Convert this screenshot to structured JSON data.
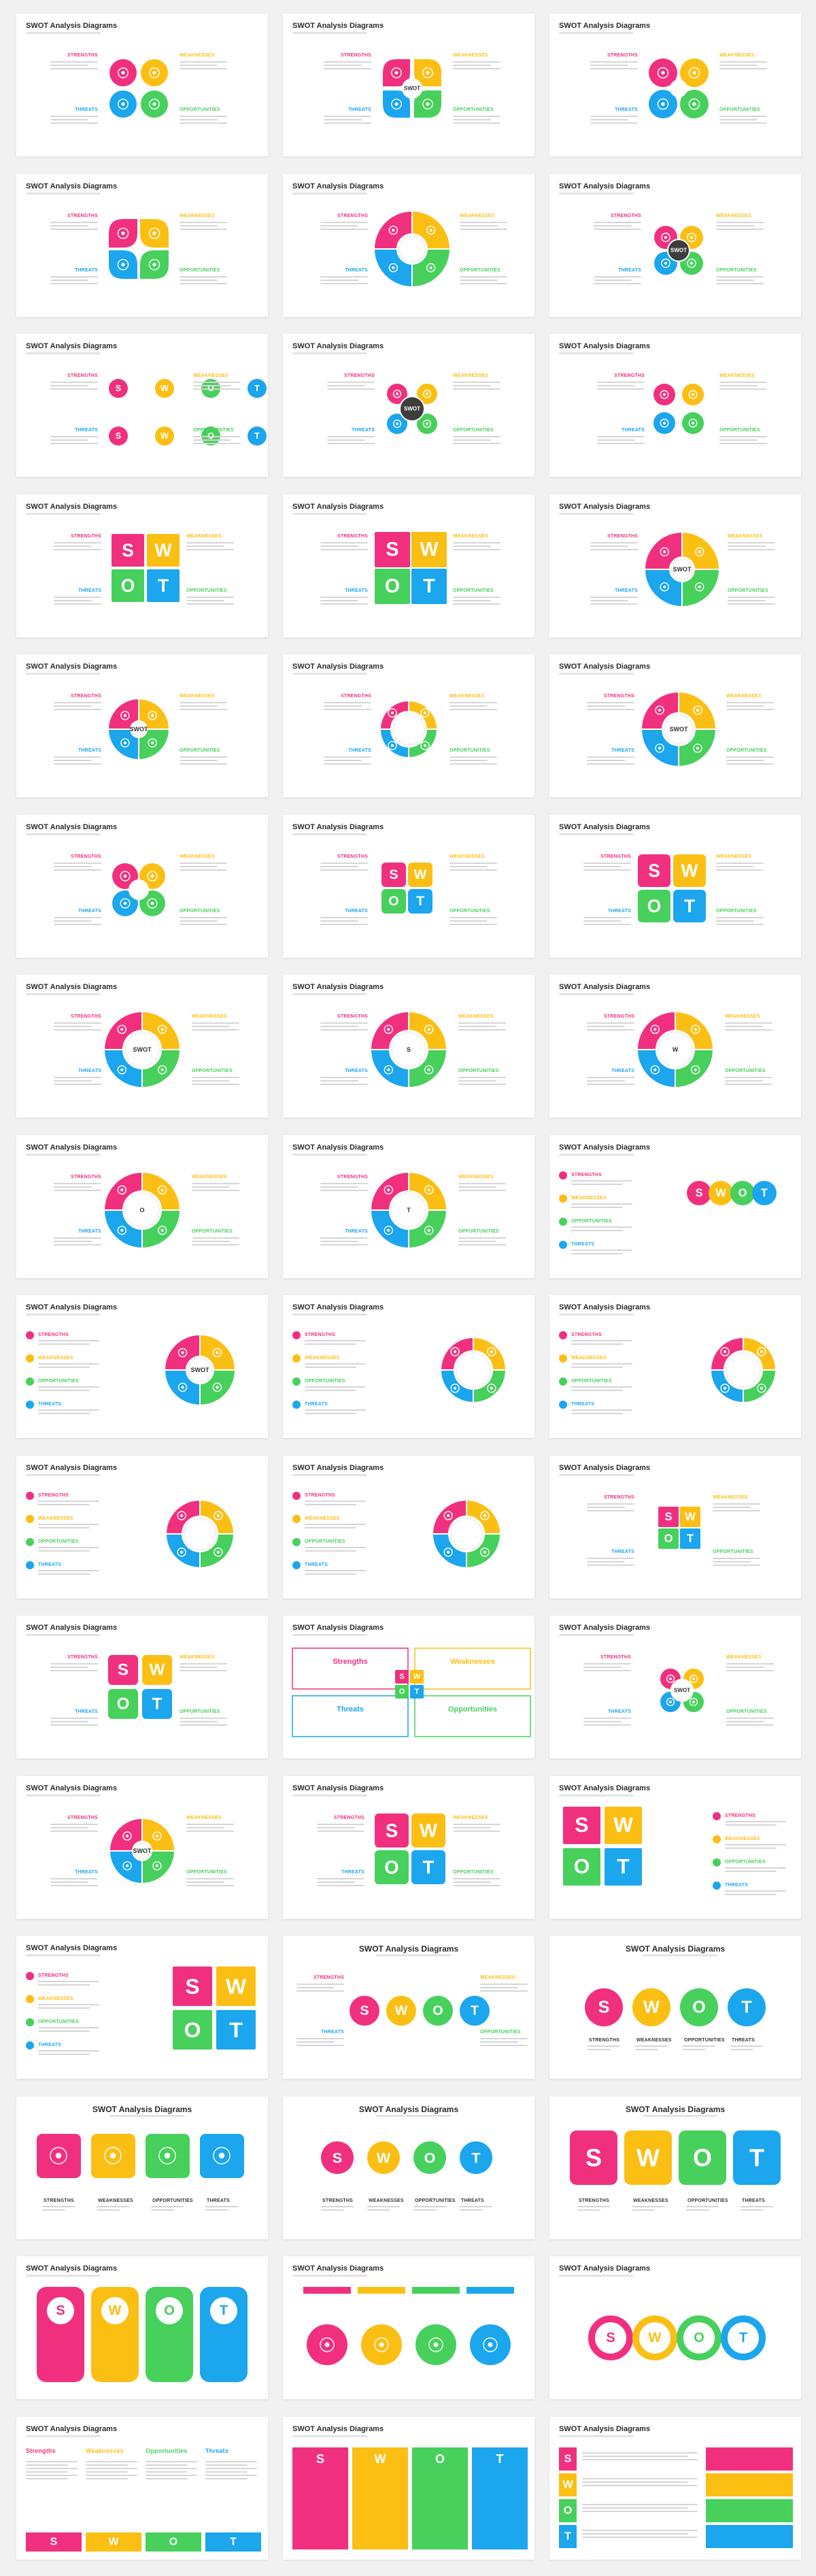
{
  "slide_title": "SWOT Analysis Diagrams",
  "labels": {
    "strengths": "STRENGTHS",
    "weaknesses": "WEAKNESSES",
    "opportunities": "OPPORTUNITIES",
    "threats": "THREATS",
    "center": "SWOT"
  },
  "cap_labels": {
    "strengths": "Strengths",
    "weaknesses": "Weaknesses",
    "opportunities": "Opportunities",
    "threats": "Threats"
  },
  "letters": [
    "S",
    "W",
    "O",
    "T"
  ],
  "colors": {
    "strengths": "#f0307f",
    "weaknesses": "#fbbf14",
    "opportunities": "#47d05c",
    "threats": "#1ba6ee",
    "center": "#3d3d3d",
    "neutral": "#e4e4e4"
  },
  "icons": [
    "magnet-icon",
    "compass-icon",
    "bomb-icon",
    "lightbulb-icon"
  ],
  "grid": {
    "columns": 3,
    "rows": 16
  }
}
